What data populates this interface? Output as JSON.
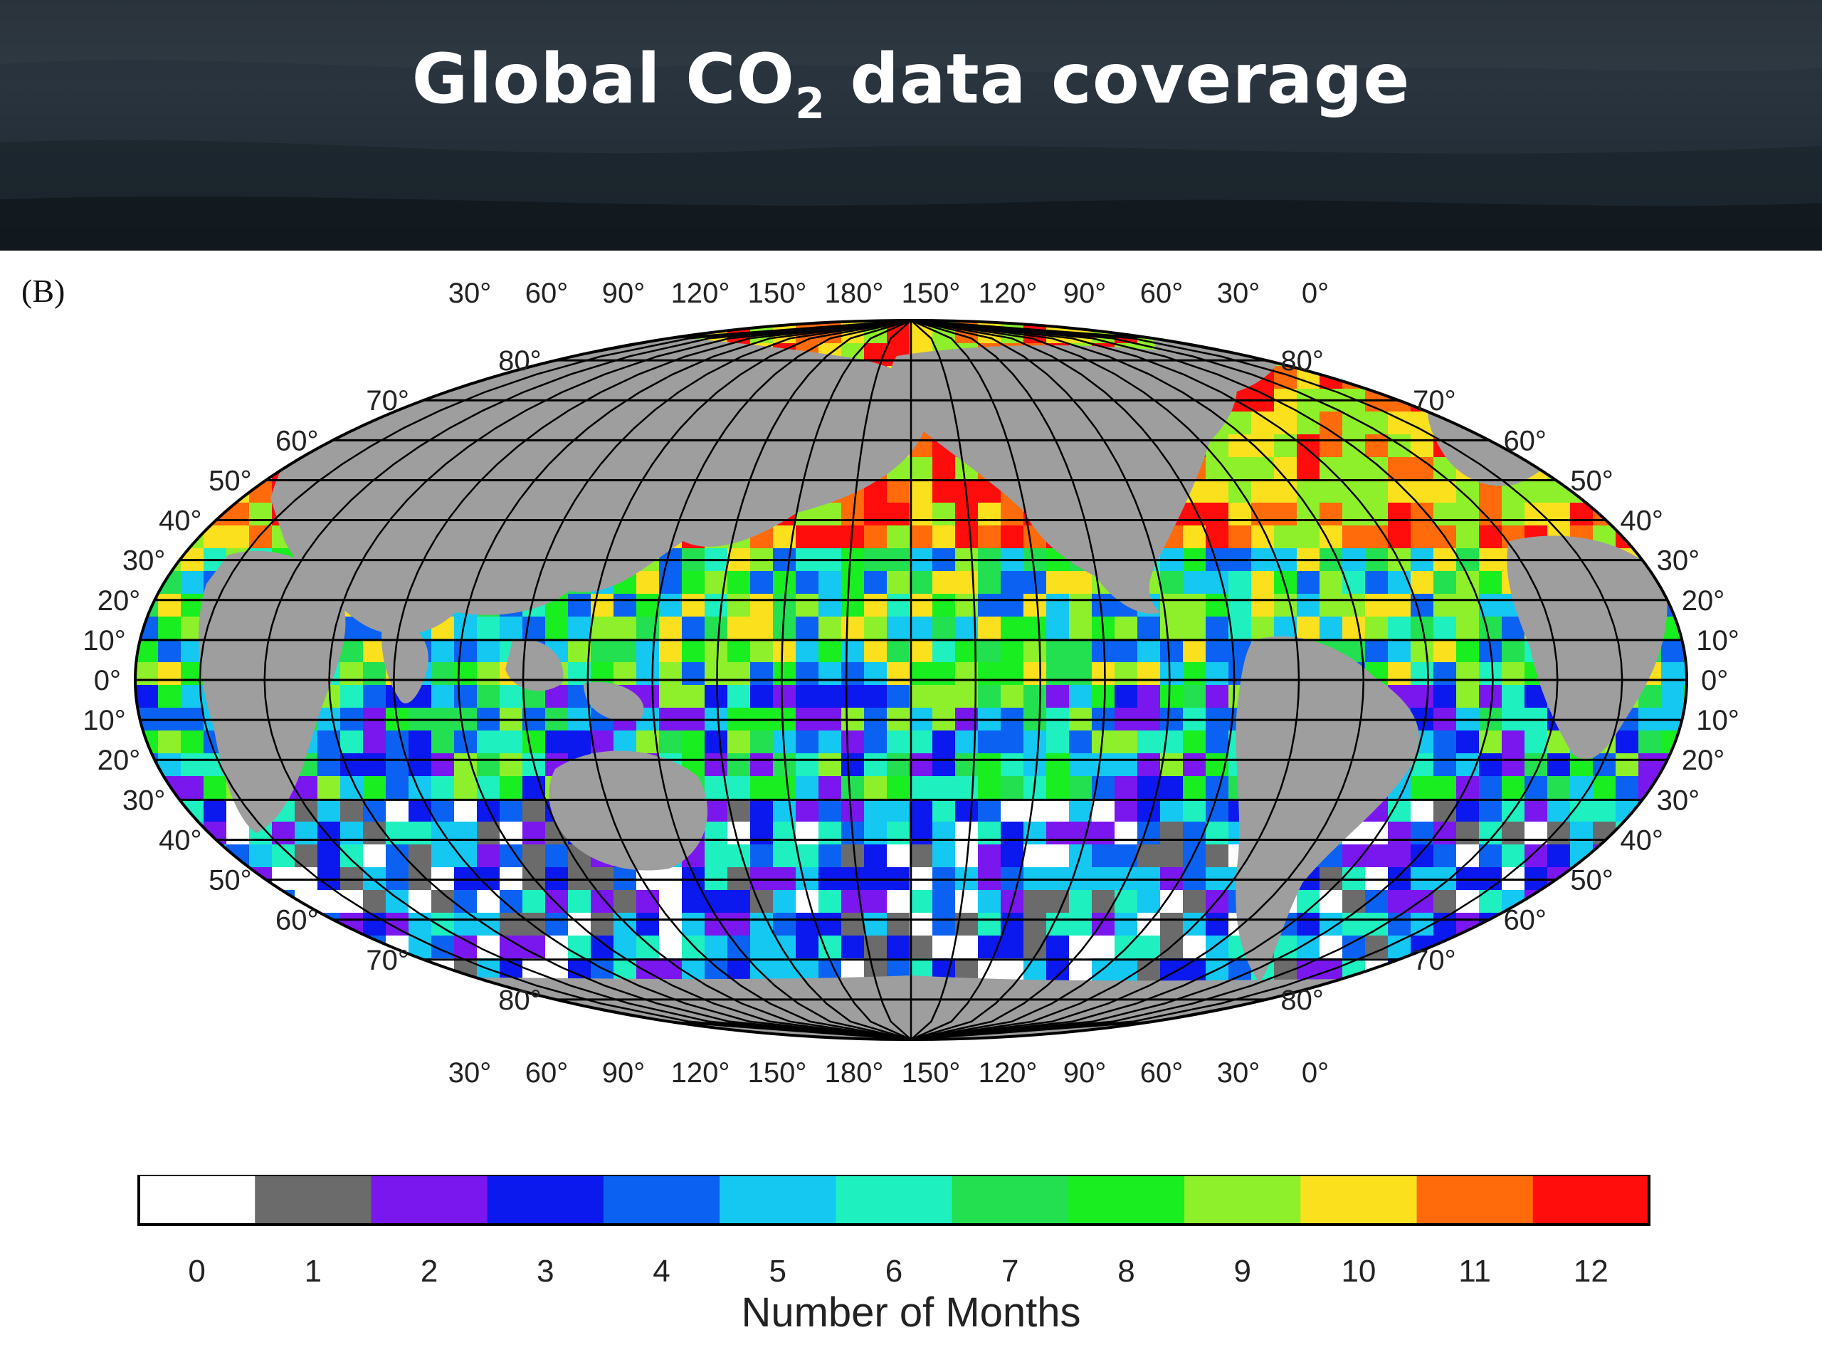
{
  "header": {
    "title_main": "Global CO",
    "title_sub": "2",
    "title_end": " data coverage"
  },
  "panel_label": "(B)",
  "map": {
    "top_longitude_labels": [
      "30°",
      "60°",
      "90°",
      "120°",
      "150°",
      "180°",
      "150°",
      "120°",
      "90°",
      "60°",
      "30°",
      "0°"
    ],
    "bottom_longitude_labels": [
      "30°",
      "60°",
      "90°",
      "120°",
      "150°",
      "180°",
      "150°",
      "120°",
      "90°",
      "60°",
      "30°",
      "0°"
    ],
    "left_latitude_labels": [
      "80°",
      "70°",
      "60°",
      "50°",
      "40°",
      "30°",
      "20°",
      "10°",
      "0°",
      "10°",
      "20°",
      "30°",
      "40°",
      "50°",
      "60°",
      "70°",
      "80°"
    ],
    "right_latitude_labels": [
      "80°",
      "70°",
      "60°",
      "50°",
      "40°",
      "30°",
      "20°",
      "10°",
      "0°",
      "10°",
      "20°",
      "30°",
      "40°",
      "50°",
      "60°",
      "70°",
      "80°"
    ],
    "land_color": "#9e9e9e",
    "grid_color": "#000000"
  },
  "colorbar": {
    "title": "Number of Months",
    "ticks": [
      "0",
      "1",
      "2",
      "3",
      "4",
      "5",
      "6",
      "7",
      "8",
      "9",
      "10",
      "11",
      "12"
    ],
    "colors": [
      "#ffffff",
      "#6b6b6b",
      "#7a16ee",
      "#0b18ee",
      "#0b62f2",
      "#14c8f2",
      "#1ef0c0",
      "#22e050",
      "#18ee20",
      "#8ef02a",
      "#fbe01e",
      "#ff6a0a",
      "#ff0c0c"
    ]
  }
}
